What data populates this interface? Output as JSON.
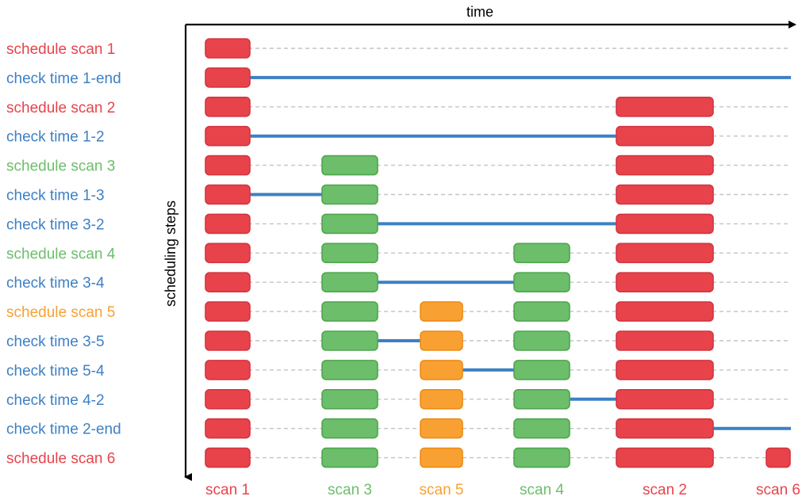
{
  "axes": {
    "x_label": "time",
    "y_label": "scheduling steps"
  },
  "colors": {
    "red": "#E8434B",
    "red_edge": "#D23540",
    "blue": "#3D80C4",
    "green": "#6CBE6A",
    "green_edge": "#4FA64D",
    "orange": "#F8A132",
    "orange_edge": "#EE8C16",
    "grid": "#c4c4c4",
    "axis": "#000000"
  },
  "scans": [
    {
      "id": "s1",
      "label": "scan 1",
      "color": "red"
    },
    {
      "id": "s3",
      "label": "scan 3",
      "color": "green"
    },
    {
      "id": "s5",
      "label": "scan 5",
      "color": "orange"
    },
    {
      "id": "s4",
      "label": "scan 4",
      "color": "green"
    },
    {
      "id": "s2",
      "label": "scan 2",
      "color": "red"
    },
    {
      "id": "s6",
      "label": "scan 6",
      "color": "red"
    }
  ],
  "steps": [
    {
      "label": "schedule scan 1",
      "color": "red",
      "bars": [
        "s1"
      ],
      "line": null
    },
    {
      "label": "check time 1-end",
      "color": "blue",
      "bars": [
        "s1"
      ],
      "line": [
        "s1",
        "end"
      ]
    },
    {
      "label": "schedule scan 2",
      "color": "red",
      "bars": [
        "s1",
        "s2"
      ],
      "line": null
    },
    {
      "label": "check time 1-2",
      "color": "blue",
      "bars": [
        "s1",
        "s2"
      ],
      "line": [
        "s1",
        "s2"
      ]
    },
    {
      "label": "schedule scan 3",
      "color": "green",
      "bars": [
        "s1",
        "s3",
        "s2"
      ],
      "line": null
    },
    {
      "label": "check time 1-3",
      "color": "blue",
      "bars": [
        "s1",
        "s3",
        "s2"
      ],
      "line": [
        "s1",
        "s3"
      ]
    },
    {
      "label": "check time 3-2",
      "color": "blue",
      "bars": [
        "s1",
        "s3",
        "s2"
      ],
      "line": [
        "s3",
        "s2"
      ]
    },
    {
      "label": "schedule scan 4",
      "color": "green",
      "bars": [
        "s1",
        "s3",
        "s4",
        "s2"
      ],
      "line": null
    },
    {
      "label": "check time 3-4",
      "color": "blue",
      "bars": [
        "s1",
        "s3",
        "s4",
        "s2"
      ],
      "line": [
        "s3",
        "s4"
      ]
    },
    {
      "label": "schedule scan 5",
      "color": "orange",
      "bars": [
        "s1",
        "s3",
        "s5",
        "s4",
        "s2"
      ],
      "line": null
    },
    {
      "label": "check time 3-5",
      "color": "blue",
      "bars": [
        "s1",
        "s3",
        "s5",
        "s4",
        "s2"
      ],
      "line": [
        "s3",
        "s5"
      ]
    },
    {
      "label": "check time 5-4",
      "color": "blue",
      "bars": [
        "s1",
        "s3",
        "s5",
        "s4",
        "s2"
      ],
      "line": [
        "s5",
        "s4"
      ]
    },
    {
      "label": "check time 4-2",
      "color": "blue",
      "bars": [
        "s1",
        "s3",
        "s5",
        "s4",
        "s2"
      ],
      "line": [
        "s4",
        "s2"
      ]
    },
    {
      "label": "check time 2-end",
      "color": "blue",
      "bars": [
        "s1",
        "s3",
        "s5",
        "s4",
        "s2"
      ],
      "line": [
        "s2",
        "end"
      ]
    },
    {
      "label": "schedule scan 6",
      "color": "red",
      "bars": [
        "s1",
        "s3",
        "s5",
        "s4",
        "s2",
        "s6"
      ],
      "line": null
    }
  ]
}
